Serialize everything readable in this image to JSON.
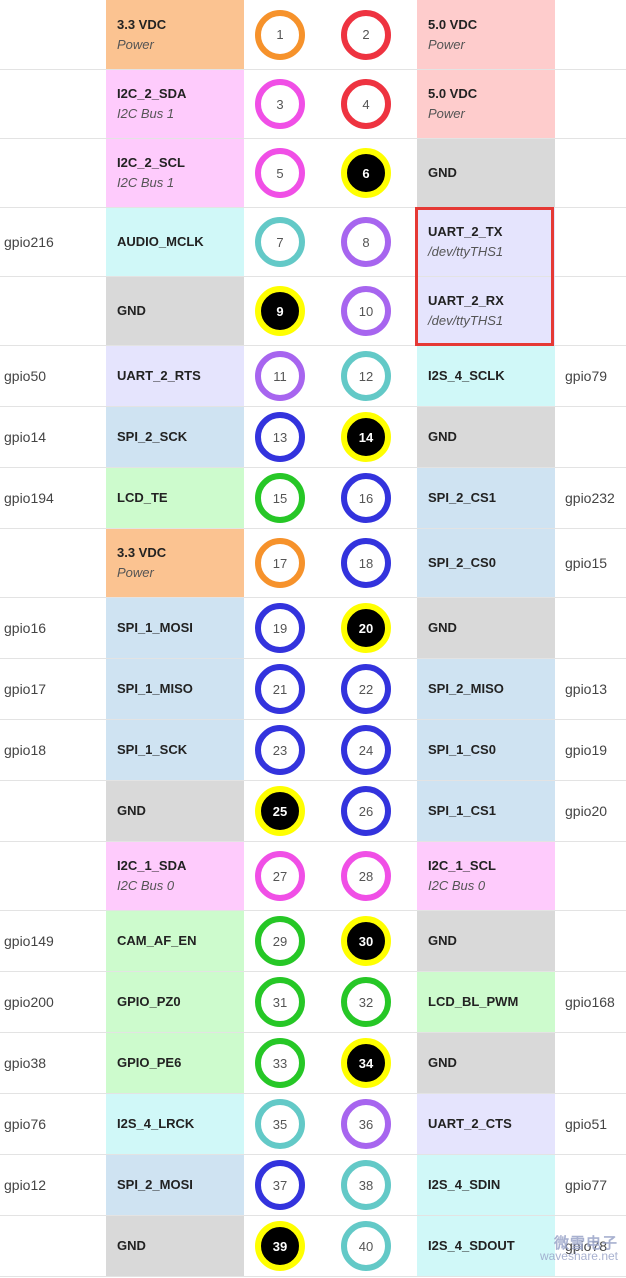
{
  "colors": {
    "power_3v3": "#fbc391",
    "power_5v": "#fecccc",
    "i2c": "#fecbfc",
    "gnd": "#d9d9d9",
    "audio_i2s": "#d0f8f8",
    "uart": "#e5e4fd",
    "spi": "#cfe3f2",
    "gpio": "#cdfbcd",
    "ring_orange": "#f6922b",
    "ring_red": "#ee3340",
    "ring_magenta": "#f04fe6",
    "ring_yellow": "#ffff00",
    "ring_teal": "#63c9c7",
    "ring_purple": "#a765ef",
    "ring_blue": "#3333dd",
    "ring_green": "#26c726",
    "highlight": "#e53935"
  },
  "rows": [
    {
      "h": 70,
      "lg": "",
      "lf": "3.3 VDC",
      "ls": "Power",
      "lc": "#fbc391",
      "lp": "1",
      "lr": "#f6922b",
      "lb": false,
      "rp": "2",
      "rr": "#ee3340",
      "rb": false,
      "rf": "5.0 VDC",
      "rs": "Power",
      "rc": "#fecccc",
      "rg": ""
    },
    {
      "h": 69,
      "lg": "",
      "lf": "I2C_2_SDA",
      "ls": "I2C Bus 1",
      "lc": "#fecbfc",
      "lp": "3",
      "lr": "#f04fe6",
      "lb": false,
      "rp": "4",
      "rr": "#ee3340",
      "rb": false,
      "rf": "5.0 VDC",
      "rs": "Power",
      "rc": "#fecccc",
      "rg": ""
    },
    {
      "h": 69,
      "lg": "",
      "lf": "I2C_2_SCL",
      "ls": "I2C Bus 1",
      "lc": "#fecbfc",
      "lp": "5",
      "lr": "#f04fe6",
      "lb": false,
      "rp": "6",
      "rr": "#ffff00",
      "rb": true,
      "rf": "GND",
      "rs": "",
      "rc": "#d9d9d9",
      "rg": ""
    },
    {
      "h": 69,
      "lg": "gpio216",
      "lf": "AUDIO_MCLK",
      "ls": "",
      "lc": "#d0f8f8",
      "lp": "7",
      "lr": "#63c9c7",
      "lb": false,
      "rp": "8",
      "rr": "#a765ef",
      "rb": false,
      "rf": "UART_2_TX",
      "rs": "/dev/ttyTHS1",
      "rc": "#e5e4fd",
      "rg": ""
    },
    {
      "h": 69,
      "lg": "",
      "lf": "GND",
      "ls": "",
      "lc": "#d9d9d9",
      "lp": "9",
      "lr": "#ffff00",
      "lb": true,
      "rp": "10",
      "rr": "#a765ef",
      "rb": false,
      "rf": "UART_2_RX",
      "rs": "/dev/ttyTHS1",
      "rc": "#e5e4fd",
      "rg": ""
    },
    {
      "h": 61,
      "lg": "gpio50",
      "lf": "UART_2_RTS",
      "ls": "",
      "lc": "#e5e4fd",
      "lp": "11",
      "lr": "#a765ef",
      "lb": false,
      "rp": "12",
      "rr": "#63c9c7",
      "rb": false,
      "rf": "I2S_4_SCLK",
      "rs": "",
      "rc": "#d0f8f8",
      "rg": "gpio79"
    },
    {
      "h": 61,
      "lg": "gpio14",
      "lf": "SPI_2_SCK",
      "ls": "",
      "lc": "#cfe3f2",
      "lp": "13",
      "lr": "#3333dd",
      "lb": false,
      "rp": "14",
      "rr": "#ffff00",
      "rb": true,
      "rf": "GND",
      "rs": "",
      "rc": "#d9d9d9",
      "rg": ""
    },
    {
      "h": 61,
      "lg": "gpio194",
      "lf": "LCD_TE",
      "ls": "",
      "lc": "#cdfbcd",
      "lp": "15",
      "lr": "#26c726",
      "lb": false,
      "rp": "16",
      "rr": "#3333dd",
      "rb": false,
      "rf": "SPI_2_CS1",
      "rs": "",
      "rc": "#cfe3f2",
      "rg": "gpio232"
    },
    {
      "h": 69,
      "lg": "",
      "lf": "3.3 VDC",
      "ls": "Power",
      "lc": "#fbc391",
      "lp": "17",
      "lr": "#f6922b",
      "lb": false,
      "rp": "18",
      "rr": "#3333dd",
      "rb": false,
      "rf": "SPI_2_CS0",
      "rs": "",
      "rc": "#cfe3f2",
      "rg": "gpio15"
    },
    {
      "h": 61,
      "lg": "gpio16",
      "lf": "SPI_1_MOSI",
      "ls": "",
      "lc": "#cfe3f2",
      "lp": "19",
      "lr": "#3333dd",
      "lb": false,
      "rp": "20",
      "rr": "#ffff00",
      "rb": true,
      "rf": "GND",
      "rs": "",
      "rc": "#d9d9d9",
      "rg": ""
    },
    {
      "h": 61,
      "lg": "gpio17",
      "lf": "SPI_1_MISO",
      "ls": "",
      "lc": "#cfe3f2",
      "lp": "21",
      "lr": "#3333dd",
      "lb": false,
      "rp": "22",
      "rr": "#3333dd",
      "rb": false,
      "rf": "SPI_2_MISO",
      "rs": "",
      "rc": "#cfe3f2",
      "rg": "gpio13"
    },
    {
      "h": 61,
      "lg": "gpio18",
      "lf": "SPI_1_SCK",
      "ls": "",
      "lc": "#cfe3f2",
      "lp": "23",
      "lr": "#3333dd",
      "lb": false,
      "rp": "24",
      "rr": "#3333dd",
      "rb": false,
      "rf": "SPI_1_CS0",
      "rs": "",
      "rc": "#cfe3f2",
      "rg": "gpio19"
    },
    {
      "h": 61,
      "lg": "",
      "lf": "GND",
      "ls": "",
      "lc": "#d9d9d9",
      "lp": "25",
      "lr": "#ffff00",
      "lb": true,
      "rp": "26",
      "rr": "#3333dd",
      "rb": false,
      "rf": "SPI_1_CS1",
      "rs": "",
      "rc": "#cfe3f2",
      "rg": "gpio20"
    },
    {
      "h": 69,
      "lg": "",
      "lf": "I2C_1_SDA",
      "ls": "I2C Bus 0",
      "lc": "#fecbfc",
      "lp": "27",
      "lr": "#f04fe6",
      "lb": false,
      "rp": "28",
      "rr": "#f04fe6",
      "rb": false,
      "rf": "I2C_1_SCL",
      "rs": "I2C Bus 0",
      "rc": "#fecbfc",
      "rg": ""
    },
    {
      "h": 61,
      "lg": "gpio149",
      "lf": "CAM_AF_EN",
      "ls": "",
      "lc": "#cdfbcd",
      "lp": "29",
      "lr": "#26c726",
      "lb": false,
      "rp": "30",
      "rr": "#ffff00",
      "rb": true,
      "rf": "GND",
      "rs": "",
      "rc": "#d9d9d9",
      "rg": ""
    },
    {
      "h": 61,
      "lg": "gpio200",
      "lf": "GPIO_PZ0",
      "ls": "",
      "lc": "#cdfbcd",
      "lp": "31",
      "lr": "#26c726",
      "lb": false,
      "rp": "32",
      "rr": "#26c726",
      "rb": false,
      "rf": "LCD_BL_PWM",
      "rs": "",
      "rc": "#cdfbcd",
      "rg": "gpio168"
    },
    {
      "h": 61,
      "lg": "gpio38",
      "lf": "GPIO_PE6",
      "ls": "",
      "lc": "#cdfbcd",
      "lp": "33",
      "lr": "#26c726",
      "lb": false,
      "rp": "34",
      "rr": "#ffff00",
      "rb": true,
      "rf": "GND",
      "rs": "",
      "rc": "#d9d9d9",
      "rg": ""
    },
    {
      "h": 61,
      "lg": "gpio76",
      "lf": "I2S_4_LRCK",
      "ls": "",
      "lc": "#d0f8f8",
      "lp": "35",
      "lr": "#63c9c7",
      "lb": false,
      "rp": "36",
      "rr": "#a765ef",
      "rb": false,
      "rf": "UART_2_CTS",
      "rs": "",
      "rc": "#e5e4fd",
      "rg": "gpio51"
    },
    {
      "h": 61,
      "lg": "gpio12",
      "lf": "SPI_2_MOSI",
      "ls": "",
      "lc": "#cfe3f2",
      "lp": "37",
      "lr": "#3333dd",
      "lb": false,
      "rp": "38",
      "rr": "#63c9c7",
      "rb": false,
      "rf": "I2S_4_SDIN",
      "rs": "",
      "rc": "#d0f8f8",
      "rg": "gpio77"
    },
    {
      "h": 61,
      "lg": "",
      "lf": "GND",
      "ls": "",
      "lc": "#d9d9d9",
      "lp": "39",
      "lr": "#ffff00",
      "lb": true,
      "rp": "40",
      "rr": "#63c9c7",
      "rb": false,
      "rf": "I2S_4_SDOUT",
      "rs": "",
      "rc": "#d0f8f8",
      "rg": "gpio78"
    }
  ],
  "watermark": {
    "top": "微雪电子",
    "bottom": "waveshare.net"
  }
}
